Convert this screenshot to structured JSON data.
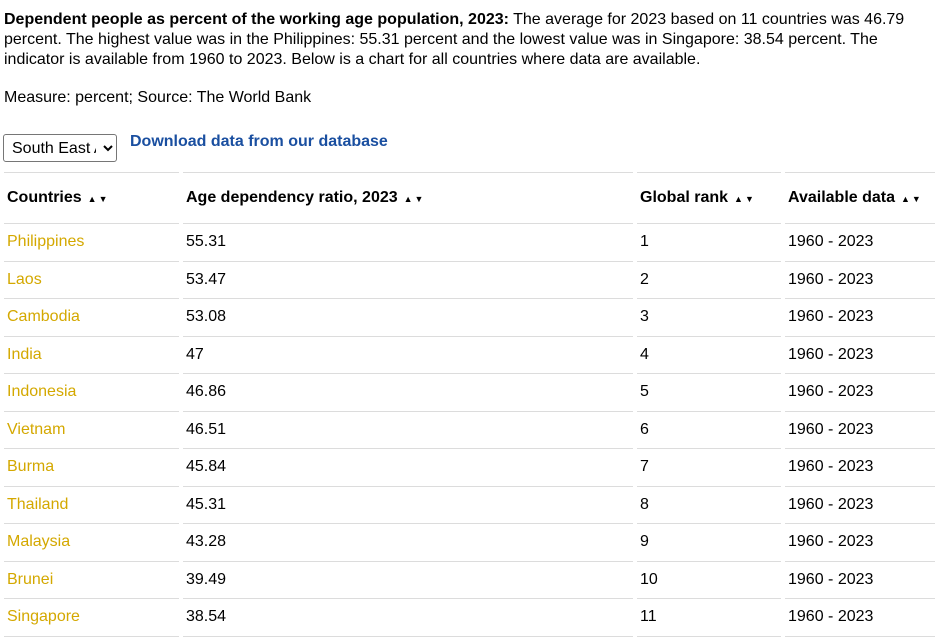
{
  "intro": {
    "heading": "Dependent people as percent of the working age population, 2023:",
    "text": " The average for 2023 based on 11 countries was 46.79 percent. The highest value was in the Philippines: 55.31 percent and the lowest value was in Singapore: 38.54 percent. The indicator is available from 1960 to 2023. Below is a chart for all countries where data are available."
  },
  "measure": "Measure: percent; Source: The World Bank",
  "region_select": {
    "selected": "South East Asia"
  },
  "download_link": "Download data from our database",
  "table": {
    "sort_glyph": "▲▼",
    "headers": [
      "Countries",
      "Age dependency ratio, 2023",
      "Global rank",
      "Available data"
    ],
    "rows": [
      {
        "country": "Philippines",
        "value": "55.31",
        "rank": "1",
        "range": "1960 - 2023"
      },
      {
        "country": "Laos",
        "value": "53.47",
        "rank": "2",
        "range": "1960 - 2023"
      },
      {
        "country": "Cambodia",
        "value": "53.08",
        "rank": "3",
        "range": "1960 - 2023"
      },
      {
        "country": "India",
        "value": "47",
        "rank": "4",
        "range": "1960 - 2023"
      },
      {
        "country": "Indonesia",
        "value": "46.86",
        "rank": "5",
        "range": "1960 - 2023"
      },
      {
        "country": "Vietnam",
        "value": "46.51",
        "rank": "6",
        "range": "1960 - 2023"
      },
      {
        "country": "Burma",
        "value": "45.84",
        "rank": "7",
        "range": "1960 - 2023"
      },
      {
        "country": "Thailand",
        "value": "45.31",
        "rank": "8",
        "range": "1960 - 2023"
      },
      {
        "country": "Malaysia",
        "value": "43.28",
        "rank": "9",
        "range": "1960 - 2023"
      },
      {
        "country": "Brunei",
        "value": "39.49",
        "rank": "10",
        "range": "1960 - 2023"
      },
      {
        "country": "Singapore",
        "value": "38.54",
        "rank": "11",
        "range": "1960 - 2023"
      }
    ]
  },
  "colors": {
    "link": "#1a4fa0",
    "country_link": "#d4a800",
    "row_border": "#dcdcdc"
  }
}
